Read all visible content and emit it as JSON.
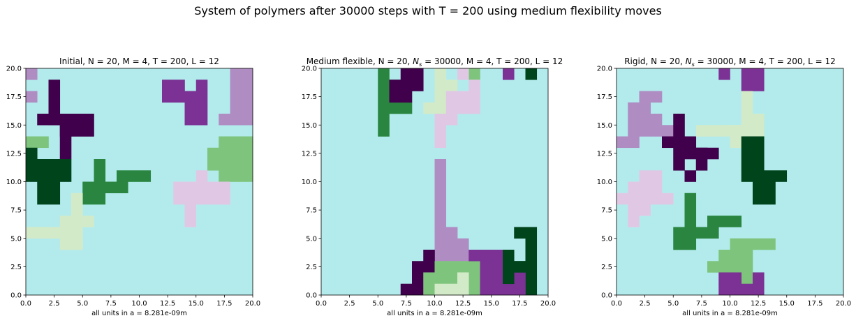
{
  "suptitle": "System of polymers after 30000 steps with T = 200 using medium flexibility moves",
  "palette": {
    "background": "#b3ebed",
    "dark_purple": "#40004b",
    "purple": "#7b3294",
    "medium_purple": "#af8dc3",
    "light_purple": "#e0c8e4",
    "light_green": "#d2eac8",
    "medium_green": "#7fc47d",
    "green": "#2a8540",
    "dark_green": "#00441b"
  },
  "chart_data": [
    {
      "type": "heatmap",
      "title_parts": [
        "Initial, N = 20, M = 4, T = 200, L = 12"
      ],
      "xlabel": "all units in a = 8.281e-09m",
      "xlim": [
        0,
        20
      ],
      "ylim": [
        0,
        20
      ],
      "xticks": [
        "0.0",
        "2.5",
        "5.0",
        "7.5",
        "10.0",
        "12.5",
        "15.0",
        "17.5",
        "20.0"
      ],
      "yticks": [
        "0.0",
        "2.5",
        "5.0",
        "7.5",
        "10.0",
        "12.5",
        "15.0",
        "17.5",
        "20.0"
      ],
      "grid": false,
      "cells": [
        {
          "color": "medium_purple",
          "rects": [
            [
              0,
              19,
              1,
              1
            ],
            [
              0,
              17,
              1,
              1
            ],
            [
              18,
              19,
              2,
              1
            ],
            [
              18,
              16,
              2,
              3
            ],
            [
              17,
              15,
              3,
              1
            ]
          ]
        },
        {
          "color": "dark_purple",
          "rects": [
            [
              2,
              17,
              1,
              2
            ],
            [
              1,
              15,
              5,
              1
            ],
            [
              3,
              14,
              3,
              1
            ],
            [
              3,
              12,
              1,
              3
            ],
            [
              2,
              15,
              1,
              2
            ]
          ]
        },
        {
          "color": "purple",
          "rects": [
            [
              12,
              17,
              2,
              2
            ],
            [
              14,
              17,
              1,
              1
            ],
            [
              14,
              15,
              2,
              2
            ],
            [
              15,
              17,
              1,
              2
            ]
          ]
        },
        {
          "color": "medium_green",
          "rects": [
            [
              0,
              13,
              2,
              1
            ],
            [
              17,
              10,
              2,
              4
            ],
            [
              16,
              11,
              1,
              2
            ],
            [
              18,
              13,
              2,
              1
            ],
            [
              19,
              10,
              1,
              2
            ],
            [
              18,
              12,
              2,
              1
            ]
          ]
        },
        {
          "color": "dark_green",
          "rects": [
            [
              0,
              12,
              1,
              1
            ],
            [
              0,
              10,
              4,
              2
            ],
            [
              1,
              8,
              2,
              2
            ]
          ]
        },
        {
          "color": "green",
          "rects": [
            [
              6,
              9,
              1,
              3
            ],
            [
              5,
              8,
              2,
              2
            ],
            [
              7,
              9,
              2,
              1
            ],
            [
              8,
              10,
              3,
              1
            ]
          ]
        },
        {
          "color": "light_purple",
          "rects": [
            [
              13,
              8,
              5,
              2
            ],
            [
              15,
              10,
              1,
              1
            ],
            [
              16,
              9,
              1,
              1
            ],
            [
              14,
              6,
              1,
              2
            ],
            [
              17,
              8,
              1,
              1
            ]
          ]
        },
        {
          "color": "light_green",
          "rects": [
            [
              4,
              7,
              1,
              2
            ],
            [
              3,
              6,
              3,
              1
            ],
            [
              0,
              5,
              5,
              1
            ],
            [
              3,
              4,
              2,
              2
            ]
          ]
        }
      ]
    },
    {
      "type": "heatmap",
      "title_parts": [
        "Medium flexible, N = 20, ",
        "N",
        "s",
        " = 30000, M = 4, T = 200, L = 12"
      ],
      "xlabel": "all units in a = 8.281e-09m",
      "xlim": [
        0,
        20
      ],
      "ylim": [
        0,
        20
      ],
      "xticks": [
        "0.0",
        "2.5",
        "5.0",
        "7.5",
        "10.0",
        "12.5",
        "15.0",
        "17.5",
        "20.0"
      ],
      "yticks": [
        "0.0",
        "2.5",
        "5.0",
        "7.5",
        "10.0",
        "12.5",
        "15.0",
        "17.5",
        "20.0"
      ],
      "grid": false,
      "cells": [
        {
          "color": "green",
          "rects": [
            [
              5,
              14,
              1,
              6
            ],
            [
              6,
              16,
              2,
              1
            ],
            [
              6,
              18,
              1,
              1
            ]
          ]
        },
        {
          "color": "dark_purple",
          "rects": [
            [
              6,
              17,
              2,
              2
            ],
            [
              8,
              18,
              1,
              2
            ],
            [
              7,
              19,
              1,
              1
            ]
          ]
        },
        {
          "color": "light_green",
          "rects": [
            [
              10,
              17,
              1,
              3
            ],
            [
              9,
              16,
              2,
              1
            ],
            [
              11,
              18,
              1,
              1
            ]
          ]
        },
        {
          "color": "medium_green",
          "rects": [
            [
              13,
              19,
              1,
              1
            ]
          ]
        },
        {
          "color": "light_purple",
          "rects": [
            [
              11,
              16,
              3,
              2
            ],
            [
              13,
              18,
              1,
              1
            ],
            [
              12,
              19,
              1,
              1
            ],
            [
              10,
              13,
              1,
              3
            ],
            [
              11,
              15,
              1,
              1
            ]
          ]
        },
        {
          "color": "purple",
          "rects": [
            [
              16,
              19,
              1,
              1
            ]
          ]
        },
        {
          "color": "dark_green",
          "rects": [
            [
              18,
              19,
              1,
              1
            ],
            [
              18,
              0,
              1,
              5
            ],
            [
              17,
              5,
              2,
              1
            ],
            [
              17,
              2,
              1,
              1
            ]
          ]
        },
        {
          "color": "medium_purple",
          "rects": [
            [
              10,
              6,
              1,
              6
            ],
            [
              10,
              3,
              2,
              3
            ],
            [
              11,
              4,
              1,
              2
            ],
            [
              12,
              3,
              1,
              2
            ]
          ]
        },
        {
          "color": "dark_purple",
          "rects": [
            [
              7,
              0,
              1,
              1
            ],
            [
              8,
              0,
              1,
              3
            ],
            [
              9,
              2,
              1,
              2
            ]
          ]
        },
        {
          "color": "medium_green",
          "rects": [
            [
              10,
              1,
              4,
              2
            ],
            [
              9,
              0,
              1,
              2
            ],
            [
              10,
              0,
              4,
              1
            ]
          ]
        },
        {
          "color": "light_green",
          "rects": [
            [
              10,
              0,
              3,
              1
            ],
            [
              12,
              1,
              1,
              1
            ]
          ]
        },
        {
          "color": "purple",
          "rects": [
            [
              13,
              3,
              3,
              1
            ],
            [
              14,
              0,
              2,
              3
            ],
            [
              16,
              0,
              2,
              1
            ],
            [
              17,
              1,
              1,
              1
            ]
          ]
        },
        {
          "color": "dark_green",
          "rects": [
            [
              16,
              1,
              1,
              3
            ],
            [
              17,
              2,
              1,
              1
            ]
          ]
        }
      ]
    },
    {
      "type": "heatmap",
      "title_parts": [
        "Rigid, N = 20, ",
        "N",
        "s",
        " = 30000, M = 4, T = 200, L = 12"
      ],
      "xlabel": "all units in a = 8.281e-09m",
      "xlim": [
        0,
        20
      ],
      "ylim": [
        0,
        20
      ],
      "xticks": [
        "0.0",
        "2.5",
        "5.0",
        "7.5",
        "10.0",
        "12.5",
        "15.0",
        "17.5",
        "20.0"
      ],
      "yticks": [
        "0.0",
        "2.5",
        "5.0",
        "7.5",
        "10.0",
        "12.5",
        "15.0",
        "17.5",
        "20.0"
      ],
      "grid": false,
      "cells": [
        {
          "color": "purple",
          "rects": [
            [
              9,
              19,
              1,
              1
            ],
            [
              11,
              18,
              2,
              2
            ]
          ]
        },
        {
          "color": "medium_purple",
          "rects": [
            [
              2,
              17,
              2,
              1
            ],
            [
              1,
              14,
              2,
              3
            ],
            [
              3,
              14,
              1,
              2
            ],
            [
              4,
              14,
              1,
              1
            ],
            [
              0,
              13,
              2,
              1
            ]
          ]
        },
        {
          "color": "dark_purple",
          "rects": [
            [
              5,
              11,
              1,
              5
            ],
            [
              4,
              13,
              3,
              1
            ],
            [
              6,
              12,
              2,
              1
            ],
            [
              7,
              11,
              1,
              2
            ],
            [
              6,
              10,
              1,
              1
            ],
            [
              8,
              12,
              1,
              1
            ]
          ]
        },
        {
          "color": "light_green",
          "rects": [
            [
              11,
              15,
              1,
              3
            ],
            [
              7,
              14,
              6,
              1
            ],
            [
              10,
              13,
              2,
              2
            ],
            [
              12,
              15,
              1,
              1
            ]
          ]
        },
        {
          "color": "dark_green",
          "rects": [
            [
              11,
              11,
              2,
              3
            ],
            [
              11,
              10,
              4,
              1
            ],
            [
              12,
              8,
              2,
              2
            ]
          ]
        },
        {
          "color": "light_purple",
          "rects": [
            [
              0,
              8,
              5,
              1
            ],
            [
              1,
              9,
              3,
              1
            ],
            [
              2,
              10,
              2,
              1
            ],
            [
              1,
              6,
              1,
              2
            ],
            [
              2,
              7,
              1,
              1
            ]
          ]
        },
        {
          "color": "green",
          "rects": [
            [
              6,
              6,
              1,
              3
            ],
            [
              5,
              4,
              2,
              2
            ],
            [
              7,
              5,
              2,
              1
            ],
            [
              8,
              6,
              3,
              1
            ]
          ]
        },
        {
          "color": "medium_green",
          "rects": [
            [
              10,
              4,
              4,
              1
            ],
            [
              9,
              3,
              3,
              1
            ],
            [
              8,
              2,
              4,
              1
            ],
            [
              11,
              1,
              1,
              1
            ]
          ]
        },
        {
          "color": "purple",
          "rects": [
            [
              9,
              0,
              4,
              1
            ],
            [
              9,
              1,
              2,
              1
            ],
            [
              12,
              1,
              1,
              1
            ]
          ]
        }
      ]
    }
  ]
}
